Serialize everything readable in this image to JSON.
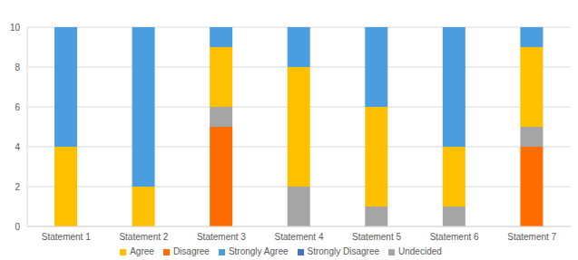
{
  "chart_data": {
    "type": "bar",
    "stacked": true,
    "grid": true,
    "legend": "bottom",
    "categories": [
      "Statement 1",
      "Statement 2",
      "Statement 3",
      "Statement 4",
      "Statement 5",
      "Statement 6",
      "Statement 7"
    ],
    "ylim": [
      0,
      10
    ],
    "yticks": [
      0,
      2,
      4,
      6,
      8,
      10
    ],
    "series": [
      {
        "name": "Strongly Disagree",
        "color": "#4472C4",
        "values": [
          0,
          0,
          0,
          0,
          0,
          0,
          0
        ]
      },
      {
        "name": "Disagree",
        "color": "#FF6D00",
        "values": [
          0,
          0,
          5,
          0,
          0,
          0,
          4
        ]
      },
      {
        "name": "Undecided",
        "color": "#A5A5A5",
        "values": [
          0,
          0,
          1,
          2,
          1,
          1,
          1
        ]
      },
      {
        "name": "Agree",
        "color": "#FFC000",
        "values": [
          4,
          2,
          3,
          6,
          5,
          3,
          4
        ]
      },
      {
        "name": "Strongly Agree",
        "color": "#4A9EDF",
        "values": [
          6,
          8,
          1,
          2,
          4,
          6,
          1
        ]
      }
    ]
  }
}
